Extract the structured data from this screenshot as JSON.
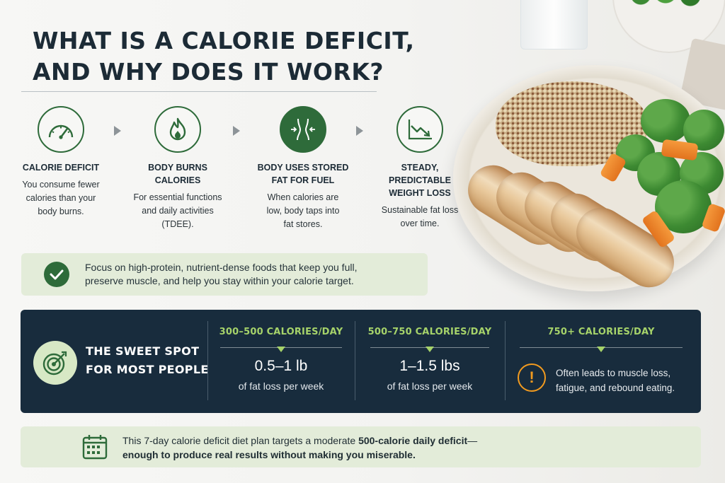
{
  "title": {
    "line1": "WHAT IS A CALORIE DEFICIT,",
    "line2": "AND WHY DOES IT WORK?"
  },
  "steps": [
    {
      "icon": "speedometer-icon",
      "title_lines": [
        "CALORIE DEFICIT"
      ],
      "desc_lines": [
        "You consume fewer",
        "calories than your",
        "body burns."
      ]
    },
    {
      "icon": "flame-icon",
      "title_lines": [
        "BODY BURNS",
        "CALORIES"
      ],
      "desc_lines": [
        "For essential functions",
        "and daily activities",
        "(TDEE)."
      ]
    },
    {
      "icon": "waist-icon",
      "title_lines": [
        "BODY USES STORED",
        "FAT FOR FUEL"
      ],
      "desc_lines": [
        "When calories are",
        "low, body taps into",
        "fat stores."
      ]
    },
    {
      "icon": "trend-down-chart-icon",
      "title_lines": [
        "STEADY,",
        "PREDICTABLE",
        "WEIGHT LOSS"
      ],
      "desc_lines": [
        "Sustainable fat loss",
        "over time."
      ]
    }
  ],
  "tip": {
    "icon": "checkmark-icon",
    "line1": "Focus on high-protein, nutrient-dense foods that keep you full,",
    "line2": "preserve muscle, and help you stay within your calorie target."
  },
  "sweet_spot": {
    "icon": "target-icon",
    "line1": "THE SWEET SPOT",
    "line2": "FOR MOST PEOPLE"
  },
  "ranges": [
    {
      "head": "300–500 CALORIES/DAY",
      "big": "0.5–1 lb",
      "small": "of fat loss per week"
    },
    {
      "head": "500–750 CALORIES/DAY",
      "big": "1–1.5 lbs",
      "small": "of fat loss per week"
    },
    {
      "head": "750+ CALORIES/DAY",
      "warning_line1": "Often leads to muscle loss,",
      "warning_line2": "fatigue, and rebound eating."
    }
  ],
  "bottom": {
    "icon": "calendar-icon",
    "line1_text": "This 7-day calorie deficit diet plan targets a moderate ",
    "line1_bold": "500-calorie daily deficit",
    "line1_end": "—",
    "line2_bold": "enough to produce real results without making you miserable."
  },
  "colors": {
    "accent_green": "#2e6b3a",
    "lime": "#a6d36a",
    "panel_navy": "#182c3d",
    "warning_orange": "#f29b1f",
    "light_green_bar": "#e3ecd9"
  }
}
